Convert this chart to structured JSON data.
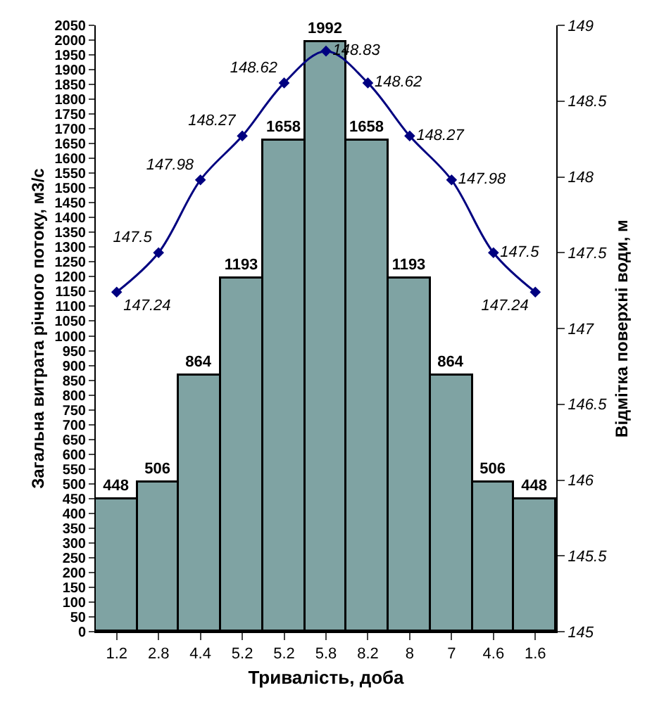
{
  "chart_data": {
    "type": "bar",
    "xlabel": "Тривалість, доба",
    "ylabel": "Загальна витрата річного потоку, м3/с",
    "y2label": "Відмітка поверхні води, м",
    "categories": [
      "1.2",
      "2.8",
      "4.4",
      "5.2",
      "5.2",
      "5.8",
      "8.2",
      "8",
      "7",
      "4.6",
      "1.6"
    ],
    "series": [
      {
        "color": "#7fa3a3",
        "values": [
          448,
          506,
          864,
          1193,
          1658,
          1992,
          1658,
          1193,
          864,
          506,
          448
        ]
      },
      {
        "type": "line",
        "axis": "y2",
        "color": "#000080",
        "marker": "diamond",
        "line_style": "solid",
        "values": [
          147.24,
          147.5,
          147.98,
          148.27,
          148.62,
          148.83,
          148.62,
          148.27,
          147.98,
          147.5,
          147.24
        ]
      }
    ],
    "ylim": [
      0,
      2050
    ],
    "yticks": [
      0,
      50,
      100,
      150,
      200,
      250,
      300,
      350,
      400,
      450,
      500,
      550,
      600,
      650,
      700,
      750,
      800,
      850,
      900,
      950,
      1000,
      1050,
      1100,
      1150,
      1200,
      1250,
      1300,
      1350,
      1400,
      1450,
      1500,
      1550,
      1600,
      1650,
      1700,
      1750,
      1800,
      1850,
      1900,
      1950,
      2000,
      2050
    ],
    "y2lim": [
      145,
      149
    ],
    "y2ticks": [
      145,
      145.5,
      146,
      146.5,
      147,
      147.5,
      148,
      148.5,
      149
    ],
    "data_labels": true
  }
}
